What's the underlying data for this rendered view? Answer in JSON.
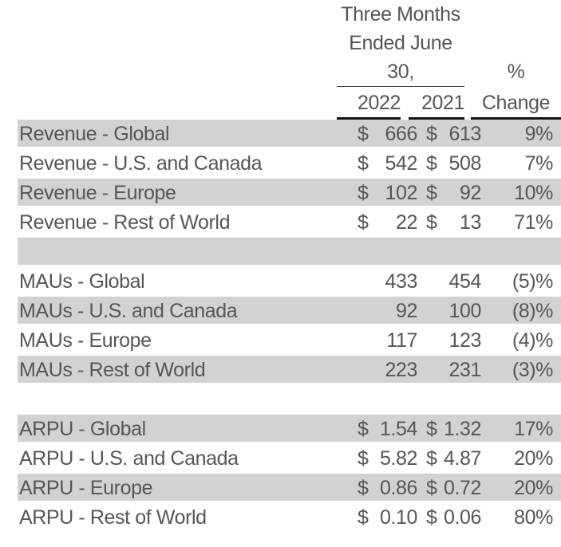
{
  "title": "Three Months Ended June 30 metrics table",
  "colors": {
    "background": "#ffffff",
    "row_shade": "#d2d2d2",
    "text": "#55565a",
    "rule_thin": "#3f4045",
    "rule_heavy": "#121212"
  },
  "header": {
    "period_lines": [
      "Three Months",
      "Ended June",
      "30,"
    ],
    "percent_symbol": "%",
    "year_1": "2022",
    "year_2": "2021",
    "change_label": "Change"
  },
  "table": {
    "rows": [
      {
        "label": "Revenue - Global",
        "cur1": "$",
        "val1": "666",
        "cur2": "$",
        "val2": "613",
        "change": "9%",
        "shaded": true,
        "spacer": false
      },
      {
        "label": "Revenue - U.S. and Canada",
        "cur1": "$",
        "val1": "542",
        "cur2": "$",
        "val2": "508",
        "change": "7%",
        "shaded": false,
        "spacer": false
      },
      {
        "label": "Revenue - Europe",
        "cur1": "$",
        "val1": "102",
        "cur2": "$",
        "val2": "92",
        "change": "10%",
        "shaded": true,
        "spacer": false
      },
      {
        "label": "Revenue - Rest of World",
        "cur1": "$",
        "val1": "22",
        "cur2": "$",
        "val2": "13",
        "change": "71%",
        "shaded": false,
        "spacer": false
      },
      {
        "label": "",
        "shaded": true,
        "spacer": true
      },
      {
        "label": "MAUs - Global",
        "val1": "433",
        "val2": "454",
        "change": "(5)%",
        "shaded": false,
        "spacer": false
      },
      {
        "label": "MAUs - U.S. and Canada",
        "val1": "92",
        "val2": "100",
        "change": "(8)%",
        "shaded": true,
        "spacer": false
      },
      {
        "label": "MAUs - Europe",
        "val1": "117",
        "val2": "123",
        "change": "(4)%",
        "shaded": false,
        "spacer": false
      },
      {
        "label": "MAUs - Rest of World",
        "val1": "223",
        "val2": "231",
        "change": "(3)%",
        "shaded": true,
        "spacer": false
      },
      {
        "label": "",
        "shaded": false,
        "spacer": true
      },
      {
        "label": "ARPU - Global",
        "cur1": "$",
        "val1": "1.54",
        "cur2": "$",
        "val2": "1.32",
        "change": "17%",
        "shaded": true,
        "spacer": false
      },
      {
        "label": "ARPU - U.S. and Canada",
        "cur1": "$",
        "val1": "5.82",
        "cur2": "$",
        "val2": "4.87",
        "change": "20%",
        "shaded": false,
        "spacer": false
      },
      {
        "label": "ARPU - Europe",
        "cur1": "$",
        "val1": "0.86",
        "cur2": "$",
        "val2": "0.72",
        "change": "20%",
        "shaded": true,
        "spacer": false
      },
      {
        "label": "ARPU - Rest of World",
        "cur1": "$",
        "val1": "0.10",
        "cur2": "$",
        "val2": "0.06",
        "change": "80%",
        "shaded": false,
        "spacer": false
      }
    ]
  }
}
